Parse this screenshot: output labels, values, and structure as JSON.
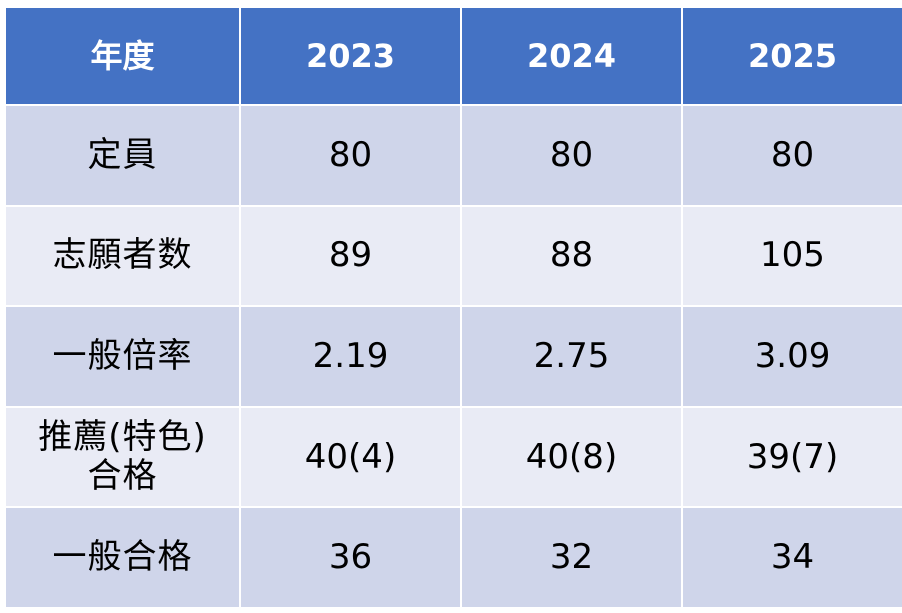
{
  "table": {
    "headers": [
      "年度",
      "2023",
      "2024",
      "2025"
    ],
    "rows": [
      {
        "label": "定員",
        "values": [
          "80",
          "80",
          "80"
        ]
      },
      {
        "label": "志願者数",
        "values": [
          "89",
          "88",
          "105"
        ]
      },
      {
        "label": "一般倍率",
        "values": [
          "2.19",
          "2.75",
          "3.09"
        ]
      },
      {
        "label_line1": "推薦(特色)",
        "label_line2": "合格",
        "values": [
          "40(4)",
          "40(8)",
          "39(7)"
        ]
      },
      {
        "label": "一般合格",
        "values": [
          "36",
          "32",
          "34"
        ]
      }
    ],
    "colors": {
      "header": "#4472c4",
      "row_odd": "#cfd5ea",
      "row_even": "#e9ebf5"
    }
  }
}
